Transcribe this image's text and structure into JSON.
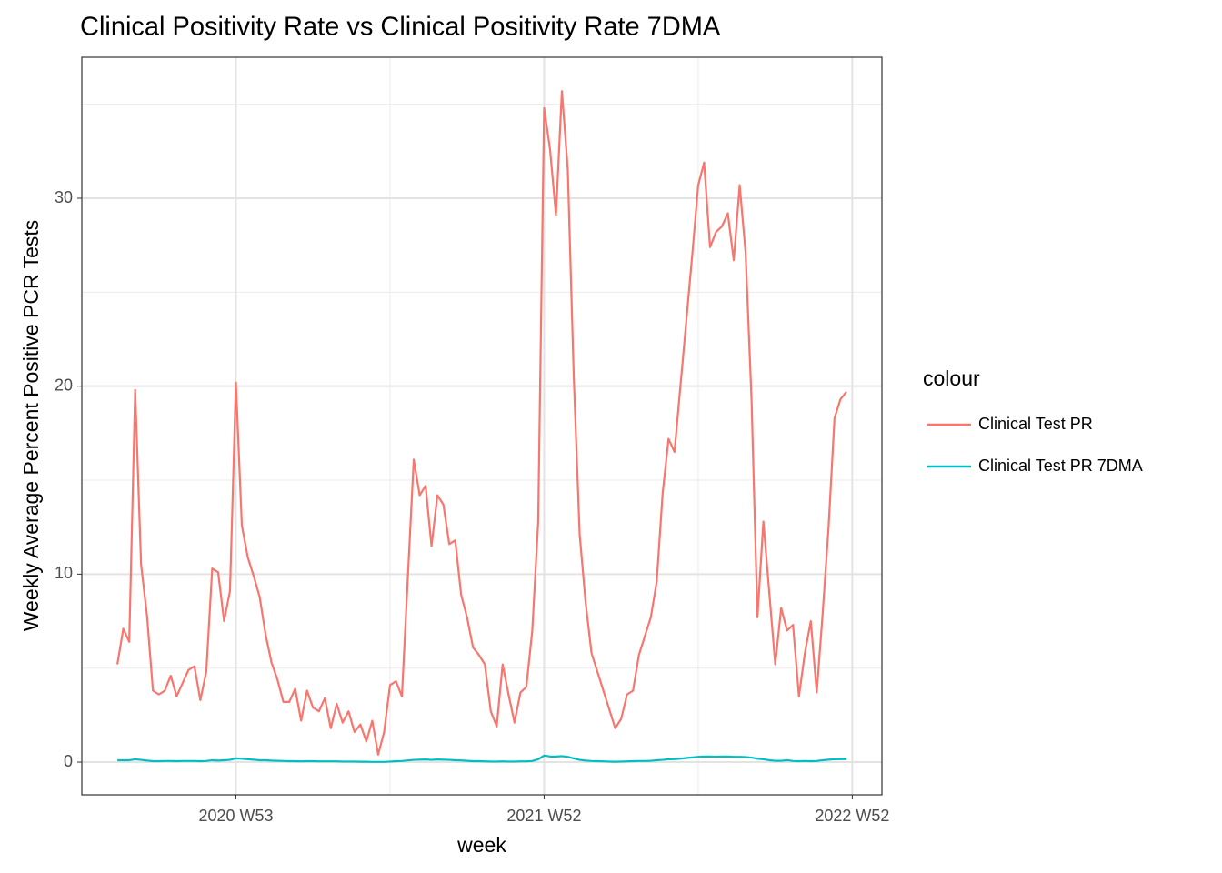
{
  "chart_data": {
    "type": "line",
    "title": "Clinical Positivity Rate vs Clinical Positivity Rate 7DMA",
    "x_label": "week",
    "y_label": "Weekly Average Percent Positive PCR Tests",
    "legend_title": "colour",
    "legend_position": "right",
    "grid": true,
    "x": [
      "2020 W33",
      "2020 W34",
      "2020 W35",
      "2020 W36",
      "2020 W37",
      "2020 W38",
      "2020 W39",
      "2020 W40",
      "2020 W41",
      "2020 W42",
      "2020 W43",
      "2020 W44",
      "2020 W45",
      "2020 W46",
      "2020 W47",
      "2020 W48",
      "2020 W49",
      "2020 W50",
      "2020 W51",
      "2020 W52",
      "2020 W53",
      "2021 W01",
      "2021 W02",
      "2021 W03",
      "2021 W04",
      "2021 W05",
      "2021 W06",
      "2021 W07",
      "2021 W08",
      "2021 W09",
      "2021 W10",
      "2021 W11",
      "2021 W12",
      "2021 W13",
      "2021 W14",
      "2021 W15",
      "2021 W16",
      "2021 W17",
      "2021 W18",
      "2021 W19",
      "2021 W20",
      "2021 W21",
      "2021 W22",
      "2021 W23",
      "2021 W24",
      "2021 W25",
      "2021 W26",
      "2021 W27",
      "2021 W28",
      "2021 W29",
      "2021 W30",
      "2021 W31",
      "2021 W32",
      "2021 W33",
      "2021 W34",
      "2021 W35",
      "2021 W36",
      "2021 W37",
      "2021 W38",
      "2021 W39",
      "2021 W40",
      "2021 W41",
      "2021 W42",
      "2021 W43",
      "2021 W44",
      "2021 W45",
      "2021 W46",
      "2021 W47",
      "2021 W48",
      "2021 W49",
      "2021 W50",
      "2021 W51",
      "2021 W52",
      "2022 W01",
      "2022 W02",
      "2022 W03",
      "2022 W04",
      "2022 W05",
      "2022 W06",
      "2022 W07",
      "2022 W08",
      "2022 W09",
      "2022 W10",
      "2022 W11",
      "2022 W12",
      "2022 W13",
      "2022 W14",
      "2022 W15",
      "2022 W16",
      "2022 W17",
      "2022 W18",
      "2022 W19",
      "2022 W20",
      "2022 W21",
      "2022 W22",
      "2022 W23",
      "2022 W24",
      "2022 W25",
      "2022 W26",
      "2022 W27",
      "2022 W28",
      "2022 W29",
      "2022 W30",
      "2022 W31",
      "2022 W32",
      "2022 W33",
      "2022 W34",
      "2022 W35",
      "2022 W36",
      "2022 W37",
      "2022 W38",
      "2022 W39",
      "2022 W40",
      "2022 W41",
      "2022 W42",
      "2022 W43",
      "2022 W44",
      "2022 W45",
      "2022 W46",
      "2022 W47",
      "2022 W48",
      "2022 W49",
      "2022 W50",
      "2022 W51"
    ],
    "series": [
      {
        "name": "Clinical Test PR",
        "color": "#f8766d",
        "values": [
          5.2,
          7.1,
          6.4,
          19.8,
          10.5,
          7.8,
          3.8,
          3.6,
          3.8,
          4.6,
          3.5,
          4.2,
          4.9,
          5.1,
          3.3,
          4.8,
          10.3,
          10.1,
          7.5,
          9.1,
          20.2,
          12.6,
          10.9,
          9.9,
          8.8,
          6.8,
          5.3,
          4.4,
          3.2,
          3.2,
          3.9,
          2.2,
          3.8,
          2.9,
          2.7,
          3.4,
          1.8,
          3.1,
          2.1,
          2.7,
          1.6,
          2.0,
          1.1,
          2.2,
          0.4,
          1.6,
          4.1,
          4.3,
          3.5,
          9.8,
          16.1,
          14.2,
          14.7,
          11.5,
          14.2,
          13.7,
          11.6,
          11.8,
          8.9,
          7.7,
          6.1,
          5.7,
          5.2,
          2.7,
          1.9,
          5.2,
          3.6,
          2.1,
          3.7,
          4.0,
          7.0,
          12.8,
          34.8,
          32.6,
          29.1,
          35.7,
          31.5,
          20.5,
          12.1,
          8.5,
          5.8,
          4.8,
          3.8,
          2.8,
          1.8,
          2.3,
          3.6,
          3.8,
          5.7,
          6.7,
          7.7,
          9.6,
          14.3,
          17.2,
          16.5,
          20.0,
          23.5,
          27.0,
          30.7,
          31.9,
          27.4,
          28.2,
          28.5,
          29.2,
          26.7,
          30.7,
          27.1,
          19.3,
          7.7,
          12.8,
          9.0,
          5.2,
          8.2,
          7.0,
          7.3,
          3.5,
          5.8,
          7.5,
          3.7,
          7.9,
          12.5,
          18.3,
          19.3,
          19.7
        ]
      },
      {
        "name": "Clinical Test PR 7DMA",
        "color": "#00bfc4",
        "values": [
          0.1,
          0.1,
          0.1,
          0.15,
          0.12,
          0.08,
          0.05,
          0.05,
          0.06,
          0.06,
          0.05,
          0.06,
          0.06,
          0.06,
          0.05,
          0.06,
          0.1,
          0.08,
          0.1,
          0.12,
          0.2,
          0.18,
          0.15,
          0.13,
          0.1,
          0.1,
          0.08,
          0.07,
          0.06,
          0.05,
          0.05,
          0.04,
          0.05,
          0.05,
          0.04,
          0.04,
          0.04,
          0.04,
          0.03,
          0.03,
          0.03,
          0.02,
          0.02,
          0.01,
          0.01,
          0.01,
          0.03,
          0.05,
          0.06,
          0.09,
          0.12,
          0.13,
          0.14,
          0.12,
          0.14,
          0.13,
          0.12,
          0.1,
          0.09,
          0.07,
          0.05,
          0.05,
          0.04,
          0.03,
          0.03,
          0.04,
          0.03,
          0.03,
          0.04,
          0.04,
          0.06,
          0.15,
          0.35,
          0.3,
          0.3,
          0.32,
          0.28,
          0.2,
          0.12,
          0.08,
          0.06,
          0.05,
          0.04,
          0.03,
          0.02,
          0.03,
          0.04,
          0.05,
          0.06,
          0.06,
          0.07,
          0.1,
          0.12,
          0.15,
          0.16,
          0.18,
          0.22,
          0.25,
          0.28,
          0.3,
          0.3,
          0.29,
          0.3,
          0.3,
          0.28,
          0.28,
          0.27,
          0.24,
          0.18,
          0.15,
          0.1,
          0.07,
          0.07,
          0.1,
          0.06,
          0.05,
          0.06,
          0.05,
          0.06,
          0.1,
          0.13,
          0.15,
          0.16,
          0.16
        ]
      }
    ],
    "xlim": [
      "2020 W27",
      "2023 W05"
    ],
    "xticks": [
      "2020 W53",
      "2021 W52",
      "2022 W52"
    ],
    "ylim": [
      -1.74,
      37.5
    ],
    "yticks": [
      0,
      10,
      20,
      30
    ]
  }
}
